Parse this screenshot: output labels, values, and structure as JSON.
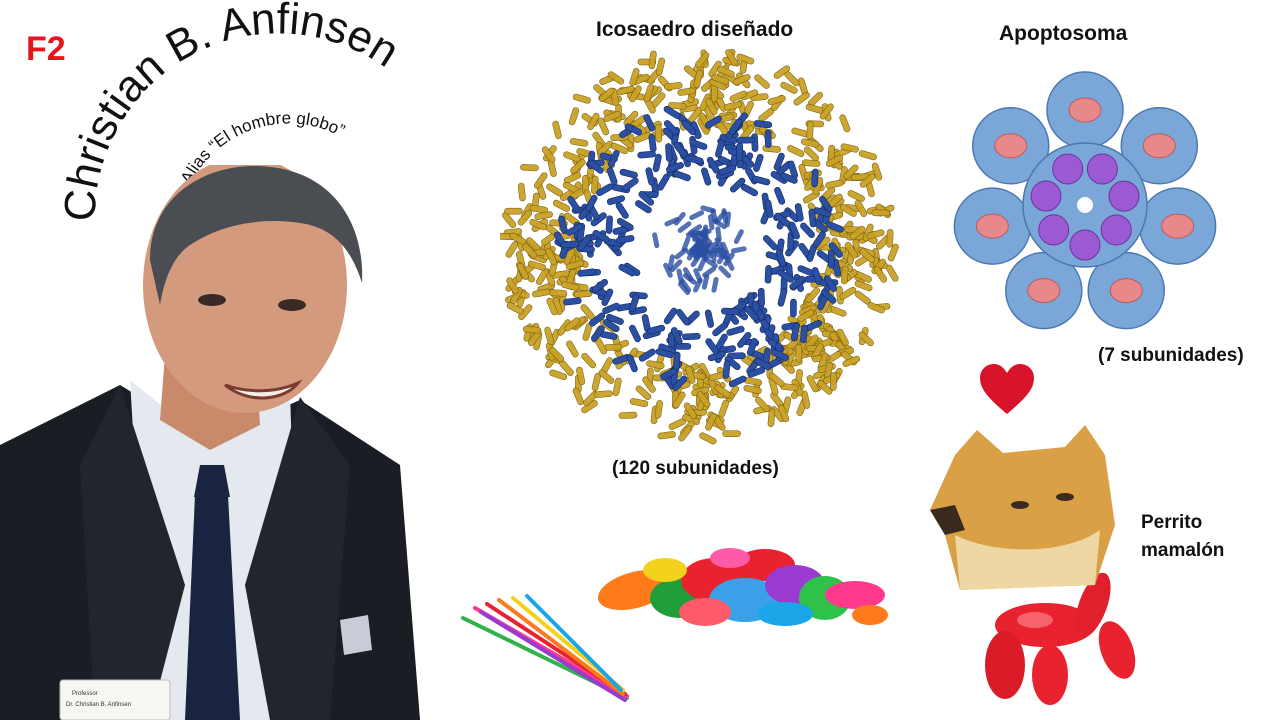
{
  "slide_tag": "F2",
  "title": {
    "name": "Christian B. Anfinsen",
    "alias": "Alias “El hombre globo”"
  },
  "photo": {
    "badge_line1": "Professor",
    "badge_line2": "Dr. Christian B. Anfinsen"
  },
  "icosahedron": {
    "title": "Icosaedro diseñado",
    "caption": "(120 subunidades)"
  },
  "apoptosome": {
    "title": "Apoptosoma",
    "caption": "(7 subunidades)"
  },
  "dog": {
    "label_line1": "Perrito",
    "label_line2": "mamalón"
  },
  "colors": {
    "tag_red": "#e8141c",
    "heart": "#d8142a",
    "gold": "#c9a227",
    "blue": "#2b4fa3",
    "apoptosome_blue": "#7aa6d8",
    "purple": "#9b5ad1",
    "salmon": "#e8888a",
    "balloon_red": "#e8222e"
  }
}
